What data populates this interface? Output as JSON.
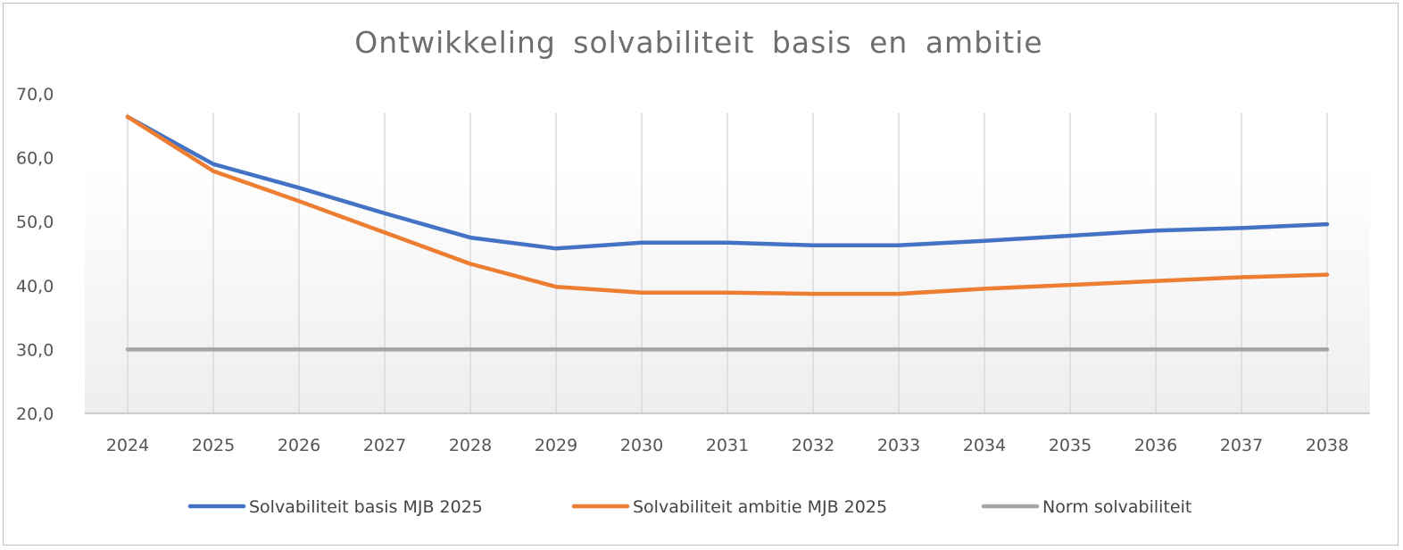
{
  "chart_data": {
    "type": "line",
    "title": "Ontwikkeling  solvabiliteit  basis  en  ambitie",
    "xlabel": "",
    "ylabel": "",
    "categories": [
      "2024",
      "2025",
      "2026",
      "2027",
      "2028",
      "2029",
      "2030",
      "2031",
      "2032",
      "2033",
      "2034",
      "2035",
      "2036",
      "2037",
      "2038"
    ],
    "ylim": [
      20,
      70
    ],
    "yticks": [
      "20,0",
      "30,0",
      "40,0",
      "50,0",
      "60,0",
      "70,0"
    ],
    "grid": "vertical",
    "legend_position": "bottom",
    "series": [
      {
        "name": "Solvabiliteit basis MJB 2025",
        "color": "#4472c4",
        "values": [
          66.4,
          59.0,
          55.3,
          51.3,
          47.5,
          45.8,
          46.7,
          46.7,
          46.3,
          46.3,
          47.0,
          47.8,
          48.6,
          49.0,
          49.6
        ]
      },
      {
        "name": "Solvabiliteit ambitie MJB 2025",
        "color": "#ed7d31",
        "values": [
          66.4,
          57.9,
          53.2,
          48.3,
          43.4,
          39.8,
          38.9,
          38.9,
          38.7,
          38.7,
          39.5,
          40.1,
          40.7,
          41.3,
          41.7
        ]
      },
      {
        "name": "Norm solvabiliteit",
        "color": "#a5a5a5",
        "values": [
          30,
          30,
          30,
          30,
          30,
          30,
          30,
          30,
          30,
          30,
          30,
          30,
          30,
          30,
          30
        ]
      }
    ]
  }
}
